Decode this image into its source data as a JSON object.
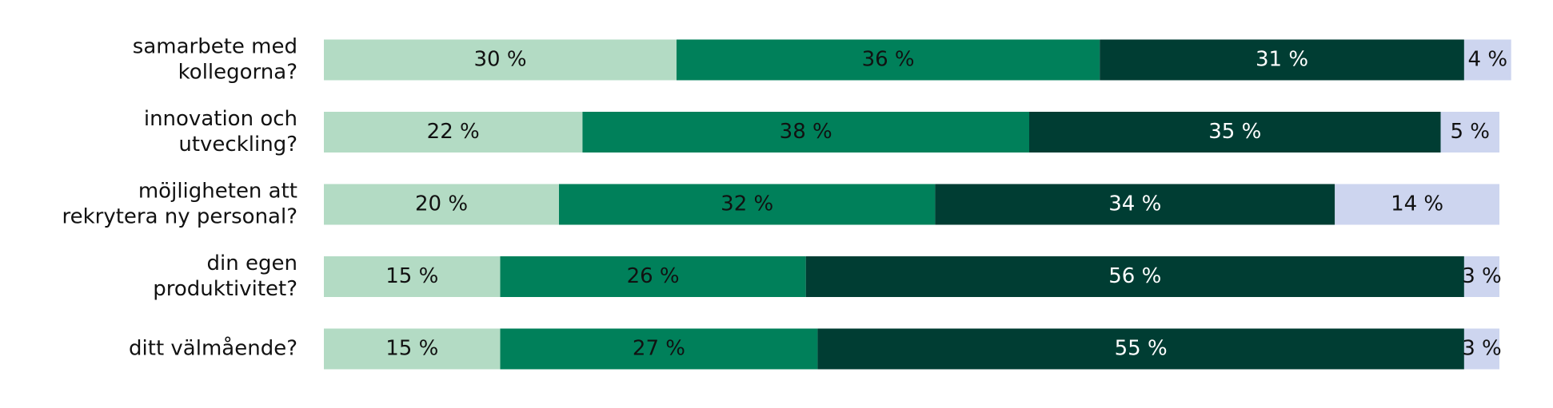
{
  "chart_data": {
    "type": "stacked-bar-horizontal",
    "categories": [
      [
        "samarbete med",
        "kollegorna?"
      ],
      [
        "innovation och",
        "utveckling?"
      ],
      [
        "möjligheten att",
        "rekrytera ny personal?"
      ],
      [
        "din egen",
        "produktivitet?"
      ],
      [
        "ditt välmående?"
      ]
    ],
    "series": [
      {
        "color": "#b3dbc4",
        "label_color": "#111111",
        "values": [
          30,
          22,
          20,
          15,
          15
        ],
        "value_labels": [
          "30 %",
          "22 %",
          "20 %",
          "15 %",
          "15 %"
        ]
      },
      {
        "color": "#00805a",
        "label_color": "#111111",
        "values": [
          36,
          38,
          32,
          26,
          27
        ],
        "value_labels": [
          "36 %",
          "38 %",
          "32 %",
          "26 %",
          "27 %"
        ]
      },
      {
        "color": "#003d33",
        "label_color": "#ffffff",
        "values": [
          31,
          35,
          34,
          56,
          55
        ],
        "value_labels": [
          "31 %",
          "35 %",
          "34 %",
          "56 %",
          "55 %"
        ]
      },
      {
        "color": "#cdd5ef",
        "label_color": "#111111",
        "values": [
          4,
          5,
          14,
          3,
          3
        ],
        "value_labels": [
          "4 %",
          "5 %",
          "14 %",
          "3 %",
          "3 %"
        ]
      }
    ]
  }
}
